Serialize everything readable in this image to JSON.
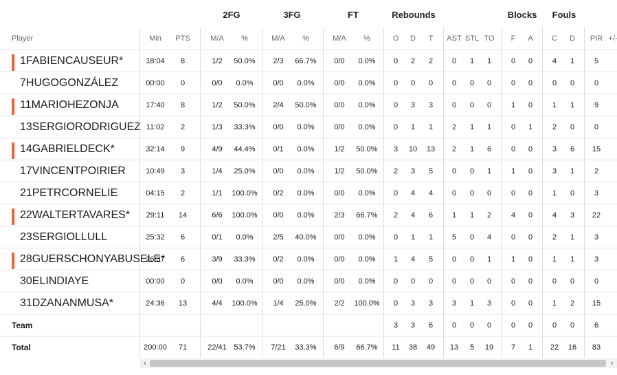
{
  "group_headers": {
    "fg2": "2FG",
    "fg3": "3FG",
    "ft": "FT",
    "rebounds": "Rebounds",
    "blocks": "Blocks",
    "fouls": "Fouls"
  },
  "columns": {
    "player": "Player",
    "min": "Min",
    "pts": "PTS",
    "fg2_ma": "M/A",
    "fg2_pct": "%",
    "fg3_ma": "M/A",
    "fg3_pct": "%",
    "ft_ma": "M/A",
    "ft_pct": "%",
    "reb_o": "O",
    "reb_d": "D",
    "reb_t": "T",
    "ast": "AST",
    "stl": "STL",
    "to": "TO",
    "blk_f": "F",
    "blk_a": "A",
    "foul_c": "C",
    "foul_d": "D",
    "pir": "PIR",
    "pm": "+/-"
  },
  "players": [
    {
      "num": "1",
      "first": "FABIEN",
      "last": "CAUSEUR",
      "star": "*",
      "starter": true,
      "min": "18:04",
      "pts": "8",
      "fg2_ma": "1/2",
      "fg2_pct": "50.0%",
      "fg3_ma": "2/3",
      "fg3_pct": "66.7%",
      "ft_ma": "0/0",
      "ft_pct": "0.0%",
      "reb_o": "0",
      "reb_d": "2",
      "reb_t": "2",
      "ast": "0",
      "stl": "1",
      "to": "1",
      "blk_f": "0",
      "blk_a": "0",
      "foul_c": "4",
      "foul_d": "1",
      "pir": "5"
    },
    {
      "num": "7",
      "first": "HUGO",
      "last": "GONZÁLEZ",
      "star": "",
      "starter": false,
      "min": "00:00",
      "pts": "0",
      "fg2_ma": "0/0",
      "fg2_pct": "0.0%",
      "fg3_ma": "0/0",
      "fg3_pct": "0.0%",
      "ft_ma": "0/0",
      "ft_pct": "0.0%",
      "reb_o": "0",
      "reb_d": "0",
      "reb_t": "0",
      "ast": "0",
      "stl": "0",
      "to": "0",
      "blk_f": "0",
      "blk_a": "0",
      "foul_c": "0",
      "foul_d": "0",
      "pir": "0"
    },
    {
      "num": "11",
      "first": "MARIO",
      "last": "HEZONJA",
      "star": "",
      "starter": true,
      "min": "17:40",
      "pts": "8",
      "fg2_ma": "1/2",
      "fg2_pct": "50.0%",
      "fg3_ma": "2/4",
      "fg3_pct": "50.0%",
      "ft_ma": "0/0",
      "ft_pct": "0.0%",
      "reb_o": "0",
      "reb_d": "3",
      "reb_t": "3",
      "ast": "0",
      "stl": "0",
      "to": "0",
      "blk_f": "1",
      "blk_a": "0",
      "foul_c": "1",
      "foul_d": "1",
      "pir": "9"
    },
    {
      "num": "13",
      "first": "SERGIO",
      "last": "RODRIGUEZ",
      "star": "",
      "starter": false,
      "min": "11:02",
      "pts": "2",
      "fg2_ma": "1/3",
      "fg2_pct": "33.3%",
      "fg3_ma": "0/0",
      "fg3_pct": "0.0%",
      "ft_ma": "0/0",
      "ft_pct": "0.0%",
      "reb_o": "0",
      "reb_d": "1",
      "reb_t": "1",
      "ast": "2",
      "stl": "1",
      "to": "1",
      "blk_f": "0",
      "blk_a": "1",
      "foul_c": "2",
      "foul_d": "0",
      "pir": "0"
    },
    {
      "num": "14",
      "first": "GABRIEL",
      "last": "DECK",
      "star": "*",
      "starter": true,
      "min": "32:14",
      "pts": "9",
      "fg2_ma": "4/9",
      "fg2_pct": "44.4%",
      "fg3_ma": "0/1",
      "fg3_pct": "0.0%",
      "ft_ma": "1/2",
      "ft_pct": "50.0%",
      "reb_o": "3",
      "reb_d": "10",
      "reb_t": "13",
      "ast": "2",
      "stl": "1",
      "to": "6",
      "blk_f": "0",
      "blk_a": "0",
      "foul_c": "3",
      "foul_d": "6",
      "pir": "15"
    },
    {
      "num": "17",
      "first": "VINCENT",
      "last": "POIRIER",
      "star": "",
      "starter": false,
      "min": "10:49",
      "pts": "3",
      "fg2_ma": "1/4",
      "fg2_pct": "25.0%",
      "fg3_ma": "0/0",
      "fg3_pct": "0.0%",
      "ft_ma": "1/2",
      "ft_pct": "50.0%",
      "reb_o": "2",
      "reb_d": "3",
      "reb_t": "5",
      "ast": "0",
      "stl": "0",
      "to": "1",
      "blk_f": "1",
      "blk_a": "0",
      "foul_c": "3",
      "foul_d": "1",
      "pir": "2"
    },
    {
      "num": "21",
      "first": "PETR",
      "last": "CORNELIE",
      "star": "",
      "starter": false,
      "min": "04:15",
      "pts": "2",
      "fg2_ma": "1/1",
      "fg2_pct": "100.0%",
      "fg3_ma": "0/2",
      "fg3_pct": "0.0%",
      "ft_ma": "0/0",
      "ft_pct": "0.0%",
      "reb_o": "0",
      "reb_d": "4",
      "reb_t": "4",
      "ast": "0",
      "stl": "0",
      "to": "0",
      "blk_f": "0",
      "blk_a": "0",
      "foul_c": "1",
      "foul_d": "0",
      "pir": "3"
    },
    {
      "num": "22",
      "first": "WALTER",
      "last": "TAVARES",
      "star": "*",
      "starter": true,
      "min": "29:11",
      "pts": "14",
      "fg2_ma": "6/6",
      "fg2_pct": "100.0%",
      "fg3_ma": "0/0",
      "fg3_pct": "0.0%",
      "ft_ma": "2/3",
      "ft_pct": "66.7%",
      "reb_o": "2",
      "reb_d": "4",
      "reb_t": "6",
      "ast": "1",
      "stl": "1",
      "to": "2",
      "blk_f": "4",
      "blk_a": "0",
      "foul_c": "4",
      "foul_d": "3",
      "pir": "22"
    },
    {
      "num": "23",
      "first": "SERGIO",
      "last": "LLULL",
      "star": "",
      "starter": false,
      "min": "25:32",
      "pts": "6",
      "fg2_ma": "0/1",
      "fg2_pct": "0.0%",
      "fg3_ma": "2/5",
      "fg3_pct": "40.0%",
      "ft_ma": "0/0",
      "ft_pct": "0.0%",
      "reb_o": "0",
      "reb_d": "1",
      "reb_t": "1",
      "ast": "5",
      "stl": "0",
      "to": "4",
      "blk_f": "0",
      "blk_a": "0",
      "foul_c": "2",
      "foul_d": "1",
      "pir": "3"
    },
    {
      "num": "28",
      "first": "GUERSCHON",
      "last": "YABUSELE",
      "star": "*",
      "starter": true,
      "min": "26:37",
      "pts": "6",
      "fg2_ma": "3/9",
      "fg2_pct": "33.3%",
      "fg3_ma": "0/2",
      "fg3_pct": "0.0%",
      "ft_ma": "0/0",
      "ft_pct": "0.0%",
      "reb_o": "1",
      "reb_d": "4",
      "reb_t": "5",
      "ast": "0",
      "stl": "0",
      "to": "1",
      "blk_f": "1",
      "blk_a": "0",
      "foul_c": "1",
      "foul_d": "1",
      "pir": "3"
    },
    {
      "num": "30",
      "first": "ELI",
      "last": "NDIAYE",
      "star": "",
      "starter": false,
      "min": "00:00",
      "pts": "0",
      "fg2_ma": "0/0",
      "fg2_pct": "0.0%",
      "fg3_ma": "0/0",
      "fg3_pct": "0.0%",
      "ft_ma": "0/0",
      "ft_pct": "0.0%",
      "reb_o": "0",
      "reb_d": "0",
      "reb_t": "0",
      "ast": "0",
      "stl": "0",
      "to": "0",
      "blk_f": "0",
      "blk_a": "0",
      "foul_c": "0",
      "foul_d": "0",
      "pir": "0"
    },
    {
      "num": "31",
      "first": "DZANAN",
      "last": "MUSA",
      "star": "*",
      "starter": false,
      "min": "24:36",
      "pts": "13",
      "fg2_ma": "4/4",
      "fg2_pct": "100.0%",
      "fg3_ma": "1/4",
      "fg3_pct": "25.0%",
      "ft_ma": "2/2",
      "ft_pct": "100.0%",
      "reb_o": "0",
      "reb_d": "3",
      "reb_t": "3",
      "ast": "3",
      "stl": "1",
      "to": "3",
      "blk_f": "0",
      "blk_a": "0",
      "foul_c": "1",
      "foul_d": "2",
      "pir": "15"
    }
  ],
  "team": {
    "label": "Team",
    "min": "",
    "pts": "",
    "fg2_ma": "",
    "fg2_pct": "",
    "fg3_ma": "",
    "fg3_pct": "",
    "ft_ma": "",
    "ft_pct": "",
    "reb_o": "3",
    "reb_d": "3",
    "reb_t": "6",
    "ast": "0",
    "stl": "0",
    "to": "0",
    "blk_f": "0",
    "blk_a": "0",
    "foul_c": "0",
    "foul_d": "0",
    "pir": "6"
  },
  "total": {
    "label": "Total",
    "min": "200:00",
    "pts": "71",
    "fg2_ma": "22/41",
    "fg2_pct": "53.7%",
    "fg3_ma": "7/21",
    "fg3_pct": "33.3%",
    "ft_ma": "6/9",
    "ft_pct": "66.7%",
    "reb_o": "11",
    "reb_d": "38",
    "reb_t": "49",
    "ast": "13",
    "stl": "5",
    "to": "19",
    "blk_f": "7",
    "blk_a": "1",
    "foul_c": "22",
    "foul_d": "16",
    "pir": "83"
  },
  "scrollbar": {
    "left_arrow": "‹",
    "right_arrow": "›"
  },
  "colors": {
    "starter_accent": "#e8643a",
    "grid_line": "#dcdcdc"
  }
}
